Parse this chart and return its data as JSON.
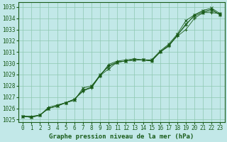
{
  "title": "Graphe pression niveau de la mer (hPa)",
  "background_color": "#c2e8e8",
  "grid_color": "#8ec8b0",
  "line_color": "#1a5c1a",
  "xlim": [
    -0.5,
    23.5
  ],
  "ylim": [
    1024.8,
    1035.4
  ],
  "yticks": [
    1025,
    1026,
    1027,
    1028,
    1029,
    1030,
    1031,
    1032,
    1033,
    1034,
    1035
  ],
  "xticks": [
    0,
    1,
    2,
    3,
    4,
    5,
    6,
    7,
    8,
    9,
    10,
    11,
    12,
    13,
    14,
    15,
    16,
    17,
    18,
    19,
    20,
    21,
    22,
    23
  ],
  "series": [
    [
      1025.3,
      1025.3,
      1025.4,
      1026.1,
      1026.3,
      1026.5,
      1026.8,
      1027.5,
      1027.9,
      1028.9,
      1029.9,
      1030.2,
      1030.3,
      1030.4,
      1030.3,
      1030.3,
      1031.0,
      1031.6,
      1032.4,
      1033.0,
      1034.0,
      1034.5,
      1034.5,
      1034.4
    ],
    [
      1025.3,
      1025.2,
      1025.4,
      1026.0,
      1026.2,
      1026.5,
      1026.7,
      1027.8,
      1028.0,
      1028.9,
      1029.5,
      1030.1,
      1030.2,
      1030.3,
      1030.3,
      1030.3,
      1031.1,
      1031.7,
      1032.6,
      1033.8,
      1034.3,
      1034.7,
      1034.9,
      1034.4
    ],
    [
      1025.3,
      1025.2,
      1025.4,
      1026.0,
      1026.2,
      1026.5,
      1026.8,
      1027.6,
      1027.8,
      1028.9,
      1029.8,
      1030.1,
      1030.2,
      1030.3,
      1030.3,
      1030.2,
      1031.0,
      1031.5,
      1032.5,
      1033.4,
      1034.3,
      1034.6,
      1034.8,
      1034.3
    ],
    [
      1025.3,
      1025.2,
      1025.4,
      1026.0,
      1026.2,
      1026.5,
      1026.8,
      1027.6,
      1027.9,
      1029.0,
      1029.7,
      1030.1,
      1030.2,
      1030.3,
      1030.3,
      1030.2,
      1031.0,
      1031.6,
      1032.5,
      1033.5,
      1034.2,
      1034.5,
      1034.7,
      1034.3
    ]
  ],
  "tick_fontsize": 5.5,
  "label_fontsize": 6.5
}
